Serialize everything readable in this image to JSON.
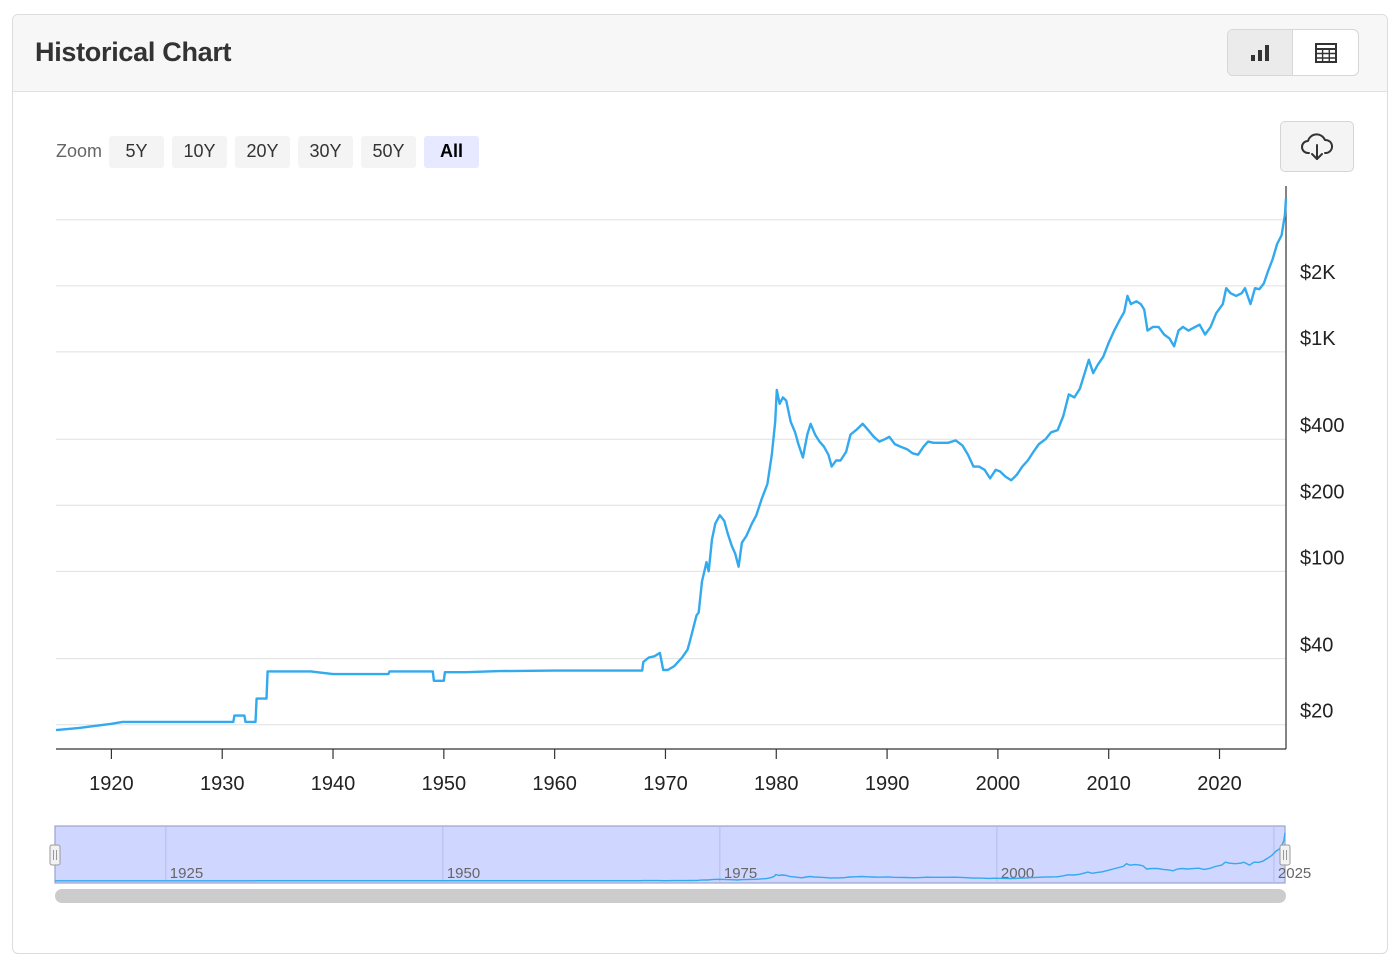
{
  "header": {
    "title": "Historical Chart",
    "chart_view_icon": "bar-chart-icon",
    "table_view_icon": "table-grid-icon"
  },
  "zoom": {
    "label": "Zoom",
    "options": [
      "5Y",
      "10Y",
      "20Y",
      "30Y",
      "50Y",
      "All"
    ],
    "selected": "All"
  },
  "download": {
    "icon": "cloud-download-icon"
  },
  "colors": {
    "line": "#33a9ee",
    "navigator_fill": "#cfd6ff",
    "navigator_border": "#9aa3cc",
    "grid": "#e0e0e0",
    "scrollbar": "#cccccc"
  },
  "navigator": {
    "labels": [
      "1925",
      "1950",
      "1975",
      "2000",
      "2025"
    ]
  },
  "chart_data": {
    "type": "line",
    "title": "",
    "xlabel": "",
    "ylabel": "",
    "y_scale": "log",
    "x_ticks": [
      "1920",
      "1930",
      "1940",
      "1950",
      "1960",
      "1970",
      "1980",
      "1990",
      "2000",
      "2010",
      "2020"
    ],
    "y_ticks": [
      {
        "value": 20,
        "label": "$20"
      },
      {
        "value": 40,
        "label": "$40"
      },
      {
        "value": 100,
        "label": "$100"
      },
      {
        "value": 200,
        "label": "$200"
      },
      {
        "value": 400,
        "label": "$400"
      },
      {
        "value": 1000,
        "label": "$1K"
      },
      {
        "value": 2000,
        "label": "$2K"
      }
    ],
    "grid": true,
    "xlim": [
      1915,
      2026
    ],
    "ylim": [
      15.5,
      5700
    ],
    "series": [
      {
        "points": [
          [
            1915.0,
            18.9
          ],
          [
            1917.0,
            19.3
          ],
          [
            1920.0,
            20.2
          ],
          [
            1921.0,
            20.6
          ],
          [
            1925.0,
            20.6
          ],
          [
            1929.9,
            20.6
          ],
          [
            1931.0,
            20.6
          ],
          [
            1931.1,
            22.0
          ],
          [
            1932.0,
            22.0
          ],
          [
            1932.1,
            20.6
          ],
          [
            1933.0,
            20.6
          ],
          [
            1933.1,
            26.3
          ],
          [
            1934.0,
            26.3
          ],
          [
            1934.1,
            35.0
          ],
          [
            1938.0,
            35.0
          ],
          [
            1940.0,
            34.0
          ],
          [
            1945.0,
            34.0
          ],
          [
            1945.1,
            35.0
          ],
          [
            1949.0,
            35.0
          ],
          [
            1949.1,
            31.7
          ],
          [
            1950.0,
            31.7
          ],
          [
            1950.1,
            34.7
          ],
          [
            1952.0,
            34.7
          ],
          [
            1955.0,
            35.1
          ],
          [
            1960.0,
            35.3
          ],
          [
            1965.0,
            35.3
          ],
          [
            1967.9,
            35.3
          ],
          [
            1968.0,
            38.6
          ],
          [
            1968.5,
            40.5
          ],
          [
            1969.0,
            41.0
          ],
          [
            1969.5,
            42.5
          ],
          [
            1969.8,
            35.5
          ],
          [
            1970.2,
            35.5
          ],
          [
            1970.8,
            37.0
          ],
          [
            1971.5,
            40.5
          ],
          [
            1972.0,
            44.0
          ],
          [
            1972.3,
            50.0
          ],
          [
            1972.8,
            63.0
          ],
          [
            1973.0,
            65.0
          ],
          [
            1973.3,
            90.0
          ],
          [
            1973.7,
            110.0
          ],
          [
            1973.9,
            100.0
          ],
          [
            1974.2,
            140.0
          ],
          [
            1974.5,
            165.0
          ],
          [
            1974.9,
            180.0
          ],
          [
            1975.3,
            170.0
          ],
          [
            1975.6,
            150.0
          ],
          [
            1976.0,
            130.0
          ],
          [
            1976.3,
            120.0
          ],
          [
            1976.6,
            105.0
          ],
          [
            1976.9,
            135.0
          ],
          [
            1977.3,
            145.0
          ],
          [
            1977.8,
            165.0
          ],
          [
            1978.2,
            180.0
          ],
          [
            1978.7,
            215.0
          ],
          [
            1979.2,
            250.0
          ],
          [
            1979.6,
            340.0
          ],
          [
            1979.9,
            480.0
          ],
          [
            1980.05,
            670.0
          ],
          [
            1980.3,
            580.0
          ],
          [
            1980.6,
            620.0
          ],
          [
            1980.9,
            600.0
          ],
          [
            1981.3,
            480.0
          ],
          [
            1981.7,
            430.0
          ],
          [
            1982.0,
            380.0
          ],
          [
            1982.4,
            330.0
          ],
          [
            1982.8,
            420.0
          ],
          [
            1983.1,
            470.0
          ],
          [
            1983.5,
            420.0
          ],
          [
            1983.9,
            390.0
          ],
          [
            1984.3,
            370.0
          ],
          [
            1984.7,
            340.0
          ],
          [
            1985.0,
            300.0
          ],
          [
            1985.4,
            320.0
          ],
          [
            1985.8,
            320.0
          ],
          [
            1986.3,
            350.0
          ],
          [
            1986.7,
            420.0
          ],
          [
            1987.2,
            440.0
          ],
          [
            1987.8,
            470.0
          ],
          [
            1988.3,
            440.0
          ],
          [
            1988.8,
            410.0
          ],
          [
            1989.3,
            390.0
          ],
          [
            1989.8,
            400.0
          ],
          [
            1990.2,
            410.0
          ],
          [
            1990.7,
            380.0
          ],
          [
            1991.2,
            370.0
          ],
          [
            1991.8,
            360.0
          ],
          [
            1992.3,
            345.0
          ],
          [
            1992.8,
            340.0
          ],
          [
            1993.3,
            370.0
          ],
          [
            1993.7,
            390.0
          ],
          [
            1994.2,
            385.0
          ],
          [
            1994.8,
            385.0
          ],
          [
            1995.5,
            385.0
          ],
          [
            1996.2,
            395.0
          ],
          [
            1996.8,
            375.0
          ],
          [
            1997.3,
            340.0
          ],
          [
            1997.8,
            300.0
          ],
          [
            1998.3,
            300.0
          ],
          [
            1998.8,
            290.0
          ],
          [
            1999.3,
            265.0
          ],
          [
            1999.8,
            290.0
          ],
          [
            2000.2,
            285.0
          ],
          [
            2000.7,
            270.0
          ],
          [
            2001.2,
            260.0
          ],
          [
            2001.7,
            275.0
          ],
          [
            2002.2,
            300.0
          ],
          [
            2002.7,
            320.0
          ],
          [
            2003.2,
            350.0
          ],
          [
            2003.7,
            380.0
          ],
          [
            2004.3,
            400.0
          ],
          [
            2004.8,
            430.0
          ],
          [
            2005.4,
            440.0
          ],
          [
            2005.9,
            510.0
          ],
          [
            2006.4,
            640.0
          ],
          [
            2006.9,
            620.0
          ],
          [
            2007.4,
            680.0
          ],
          [
            2007.9,
            820.0
          ],
          [
            2008.2,
            920.0
          ],
          [
            2008.6,
            800.0
          ],
          [
            2009.0,
            870.0
          ],
          [
            2009.5,
            950.0
          ],
          [
            2010.0,
            1100.0
          ],
          [
            2010.5,
            1250.0
          ],
          [
            2011.0,
            1400.0
          ],
          [
            2011.4,
            1520.0
          ],
          [
            2011.7,
            1800.0
          ],
          [
            2012.0,
            1650.0
          ],
          [
            2012.5,
            1700.0
          ],
          [
            2012.9,
            1650.0
          ],
          [
            2013.2,
            1560.0
          ],
          [
            2013.5,
            1250.0
          ],
          [
            2014.0,
            1300.0
          ],
          [
            2014.5,
            1300.0
          ],
          [
            2015.0,
            1200.0
          ],
          [
            2015.5,
            1150.0
          ],
          [
            2015.9,
            1060.0
          ],
          [
            2016.3,
            1250.0
          ],
          [
            2016.7,
            1300.0
          ],
          [
            2017.2,
            1250.0
          ],
          [
            2017.7,
            1290.0
          ],
          [
            2018.2,
            1330.0
          ],
          [
            2018.7,
            1200.0
          ],
          [
            2019.2,
            1300.0
          ],
          [
            2019.7,
            1500.0
          ],
          [
            2020.3,
            1650.0
          ],
          [
            2020.6,
            1950.0
          ],
          [
            2021.0,
            1850.0
          ],
          [
            2021.5,
            1800.0
          ],
          [
            2022.0,
            1850.0
          ],
          [
            2022.3,
            1950.0
          ],
          [
            2022.8,
            1650.0
          ],
          [
            2023.2,
            1950.0
          ],
          [
            2023.6,
            1930.0
          ],
          [
            2024.0,
            2050.0
          ],
          [
            2024.4,
            2350.0
          ],
          [
            2024.8,
            2650.0
          ],
          [
            2025.2,
            3100.0
          ],
          [
            2025.6,
            3400.0
          ],
          [
            2025.9,
            4200.0
          ],
          [
            2026.0,
            5000.0
          ]
        ]
      }
    ]
  }
}
